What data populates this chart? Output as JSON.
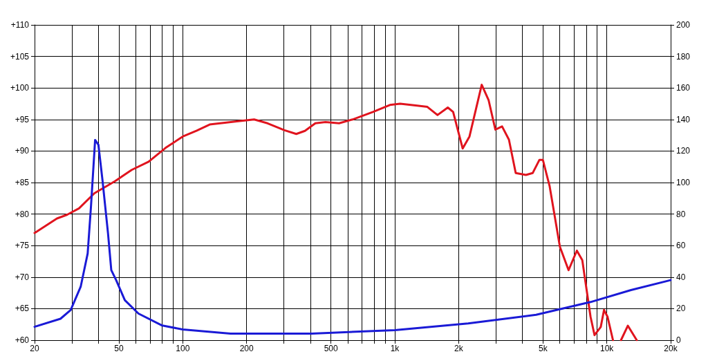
{
  "chart_data": {
    "type": "line",
    "log": "x",
    "grid": true,
    "marker": "none",
    "line_style": "solid",
    "xlim": [
      20,
      20000
    ],
    "xticks": [
      20,
      {
        "value": 30,
        "label": null
      },
      {
        "value": 40,
        "label": null
      },
      50,
      {
        "value": 60,
        "label": null
      },
      {
        "value": 70,
        "label": null
      },
      {
        "value": 80,
        "label": null
      },
      {
        "value": 90,
        "label": null
      },
      100,
      200,
      {
        "value": 300,
        "label": null
      },
      {
        "value": 400,
        "label": null
      },
      500,
      {
        "value": 600,
        "label": null
      },
      {
        "value": 700,
        "label": null
      },
      {
        "value": 800,
        "label": null
      },
      {
        "value": 900,
        "label": null
      },
      {
        "value": 1000,
        "label": "1k"
      },
      {
        "value": 2000,
        "label": "2k"
      },
      {
        "value": 3000,
        "label": null
      },
      {
        "value": 4000,
        "label": null
      },
      {
        "value": 5000,
        "label": "5k"
      },
      {
        "value": 6000,
        "label": null
      },
      {
        "value": 7000,
        "label": null
      },
      {
        "value": 8000,
        "label": null
      },
      {
        "value": 9000,
        "label": null
      },
      {
        "value": 10000,
        "label": "10k"
      },
      {
        "value": 20000,
        "label": "20k"
      }
    ],
    "ylim": [
      60,
      110
    ],
    "yticks": [
      {
        "value": 60,
        "label": "+60"
      },
      {
        "value": 65,
        "label": "+65"
      },
      {
        "value": 70,
        "label": "+70"
      },
      {
        "value": 75,
        "label": "+75"
      },
      {
        "value": 80,
        "label": "+80"
      },
      {
        "value": 85,
        "label": "+85"
      },
      {
        "value": 90,
        "label": "+90"
      },
      {
        "value": 95,
        "label": "+95"
      },
      {
        "value": 100,
        "label": "+100"
      },
      {
        "value": 105,
        "label": "+105"
      },
      {
        "value": 110,
        "label": "+110"
      }
    ],
    "y2lim": [
      0,
      200
    ],
    "y2ticks": [
      0,
      20,
      40,
      60,
      80,
      100,
      120,
      140,
      160,
      180,
      200
    ],
    "series": [
      {
        "color": "#e0141e",
        "x": [
          20,
          25.5,
          28.5,
          32.4,
          38.3,
          47.8,
          57.4,
          69,
          83,
          100,
          116,
          134,
          180,
          217,
          251,
          302,
          343,
          377,
          422,
          471,
          546,
          632,
          789,
          948,
          1060,
          1274,
          1424,
          1590,
          1778,
          1884,
          2090,
          2250,
          2570,
          2768,
          2980,
          3206,
          3454,
          3718,
          4150,
          4468,
          4810,
          4992,
          5374,
          6008,
          6600,
          7220,
          7660,
          8380,
          8750,
          9360,
          9700,
          10080,
          10690,
          11000,
          11660,
          12560,
          13840
        ],
        "values": [
          77,
          79.3,
          79.9,
          80.9,
          83.3,
          85.2,
          87,
          88.3,
          90.5,
          92.3,
          93.2,
          94.2,
          94.7,
          95,
          94.4,
          93.3,
          92.7,
          93.2,
          94.4,
          94.6,
          94.4,
          95,
          96.2,
          97.3,
          97.5,
          97.2,
          97,
          95.7,
          96.9,
          96.2,
          90.4,
          92.3,
          100.5,
          98.1,
          93.4,
          93.9,
          91.8,
          86.5,
          86.2,
          86.5,
          88.6,
          88.6,
          84.4,
          74.8,
          71.1,
          74.2,
          72.7,
          63.7,
          60.8,
          62.1,
          64.8,
          63.7,
          60,
          null,
          60,
          62.3,
          60
        ]
      },
      {
        "color": "#1a1ad6",
        "axis": "y2",
        "x": [
          20,
          26.5,
          29.6,
          33,
          35.6,
          36.9,
          38.6,
          40,
          41.8,
          44.4,
          46,
          48.5,
          53.3,
          61.8,
          80,
          100,
          168,
          406,
          1000,
          2220,
          4640,
          8380,
          13000,
          20000
        ],
        "values": [
          8.5,
          13.6,
          19.1,
          33.9,
          55,
          84.7,
          127,
          124,
          101.7,
          67.8,
          44.5,
          38.1,
          25.4,
          16.9,
          9.3,
          6.8,
          4.2,
          4.2,
          6.4,
          10.6,
          16.1,
          24.2,
          31.8,
          38.1
        ]
      }
    ]
  }
}
